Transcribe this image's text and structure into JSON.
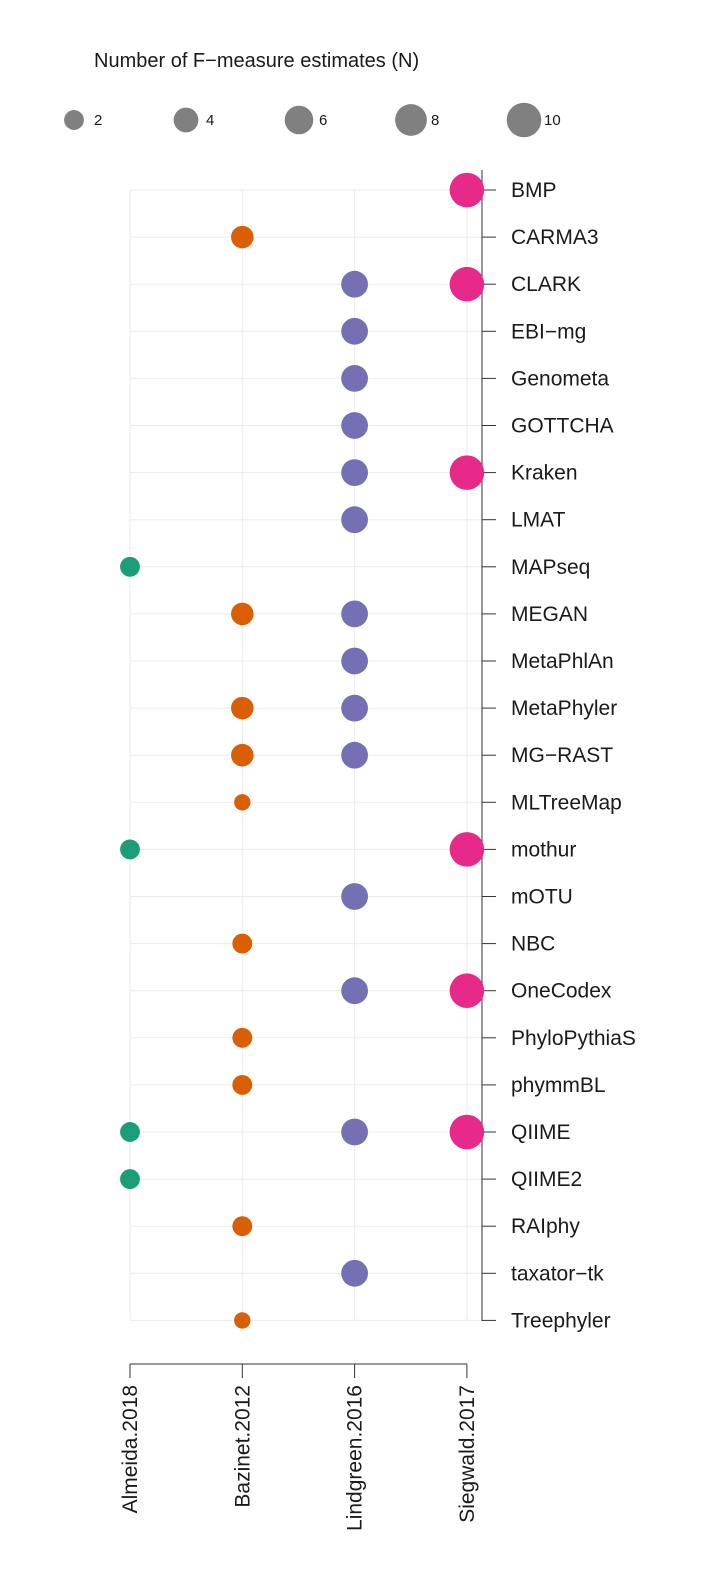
{
  "chart_data": {
    "type": "scatter",
    "legend": {
      "title": "Number of F−measure estimates (N)",
      "sizes": [
        2,
        4,
        6,
        8,
        10
      ],
      "labels": [
        "2",
        "4",
        "6",
        "8",
        "10"
      ],
      "placement": "top",
      "color": "#808080"
    },
    "x_categories": [
      "Almeida.2018",
      "Bazinet.2012",
      "Lindgreen.2016",
      "Siegwald.2017"
    ],
    "y_categories": [
      "BMP",
      "CARMA3",
      "CLARK",
      "EBI−mg",
      "Genometa",
      "GOTTCHA",
      "Kraken",
      "LMAT",
      "MAPseq",
      "MEGAN",
      "MetaPhlAn",
      "MetaPhyler",
      "MG−RAST",
      "MLTreeMap",
      "mothur",
      "mOTU",
      "NBC",
      "OneCodex",
      "PhyloPythiaS",
      "phymmBL",
      "QIIME",
      "QIIME2",
      "RAIphy",
      "taxator−tk",
      "Treephyler"
    ],
    "series_colors": {
      "Almeida.2018": "#1b9e77",
      "Bazinet.2012": "#d95f02",
      "Lindgreen.2016": "#7570b3",
      "Siegwald.2017": "#e7298a"
    },
    "points": [
      {
        "x": "Siegwald.2017",
        "y": "BMP",
        "n": 10
      },
      {
        "x": "Bazinet.2012",
        "y": "CARMA3",
        "n": 3
      },
      {
        "x": "Lindgreen.2016",
        "y": "CLARK",
        "n": 5
      },
      {
        "x": "Siegwald.2017",
        "y": "CLARK",
        "n": 10
      },
      {
        "x": "Lindgreen.2016",
        "y": "EBI−mg",
        "n": 5
      },
      {
        "x": "Lindgreen.2016",
        "y": "Genometa",
        "n": 5
      },
      {
        "x": "Lindgreen.2016",
        "y": "GOTTCHA",
        "n": 5
      },
      {
        "x": "Lindgreen.2016",
        "y": "Kraken",
        "n": 5
      },
      {
        "x": "Siegwald.2017",
        "y": "Kraken",
        "n": 10
      },
      {
        "x": "Lindgreen.2016",
        "y": "LMAT",
        "n": 5
      },
      {
        "x": "Almeida.2018",
        "y": "MAPseq",
        "n": 2
      },
      {
        "x": "Bazinet.2012",
        "y": "MEGAN",
        "n": 3
      },
      {
        "x": "Lindgreen.2016",
        "y": "MEGAN",
        "n": 5
      },
      {
        "x": "Lindgreen.2016",
        "y": "MetaPhlAn",
        "n": 5
      },
      {
        "x": "Bazinet.2012",
        "y": "MetaPhyler",
        "n": 3
      },
      {
        "x": "Lindgreen.2016",
        "y": "MetaPhyler",
        "n": 5
      },
      {
        "x": "Bazinet.2012",
        "y": "MG−RAST",
        "n": 3
      },
      {
        "x": "Lindgreen.2016",
        "y": "MG−RAST",
        "n": 5
      },
      {
        "x": "Bazinet.2012",
        "y": "MLTreeMap",
        "n": 1
      },
      {
        "x": "Almeida.2018",
        "y": "mothur",
        "n": 2
      },
      {
        "x": "Siegwald.2017",
        "y": "mothur",
        "n": 10
      },
      {
        "x": "Lindgreen.2016",
        "y": "mOTU",
        "n": 5
      },
      {
        "x": "Bazinet.2012",
        "y": "NBC",
        "n": 2
      },
      {
        "x": "Lindgreen.2016",
        "y": "OneCodex",
        "n": 5
      },
      {
        "x": "Siegwald.2017",
        "y": "OneCodex",
        "n": 10
      },
      {
        "x": "Bazinet.2012",
        "y": "PhyloPythiaS",
        "n": 2
      },
      {
        "x": "Bazinet.2012",
        "y": "phymmBL",
        "n": 2
      },
      {
        "x": "Almeida.2018",
        "y": "QIIME",
        "n": 2
      },
      {
        "x": "Lindgreen.2016",
        "y": "QIIME",
        "n": 5
      },
      {
        "x": "Siegwald.2017",
        "y": "QIIME",
        "n": 10
      },
      {
        "x": "Almeida.2018",
        "y": "QIIME2",
        "n": 2
      },
      {
        "x": "Bazinet.2012",
        "y": "RAIphy",
        "n": 2
      },
      {
        "x": "Lindgreen.2016",
        "y": "taxator−tk",
        "n": 5
      },
      {
        "x": "Bazinet.2012",
        "y": "Treephyler",
        "n": 1
      }
    ],
    "grid": true
  }
}
